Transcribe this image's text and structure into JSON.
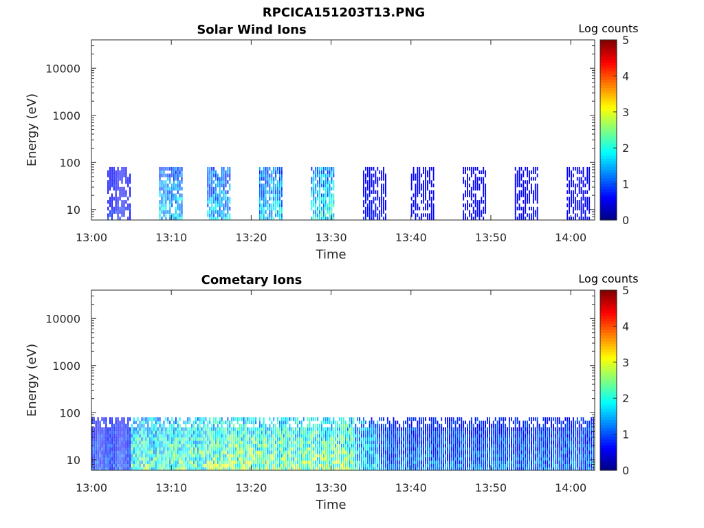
{
  "figure_title": "RPCICA151203T13.PNG",
  "chart_data": [
    {
      "type": "heatmap",
      "title": "Solar Wind Ions",
      "xlabel": "Time",
      "ylabel": "Energy (eV)",
      "yscale": "log",
      "xlim": [
        "13:00",
        "14:03"
      ],
      "ylim": [
        6,
        40000
      ],
      "x_ticks": [
        "13:00",
        "13:10",
        "13:20",
        "13:30",
        "13:40",
        "13:50",
        "14:00"
      ],
      "y_ticks": [
        "10",
        "100",
        "1000",
        "10000"
      ],
      "colorbar": {
        "label": "Log counts",
        "range": [
          0,
          5
        ],
        "ticks": [
          "0",
          "1",
          "2",
          "3",
          "4",
          "5"
        ],
        "colormap": "jet"
      },
      "data_energy_range_eV": [
        6,
        80
      ],
      "bursts": [
        {
          "start": "13:02:00",
          "end": "13:05:00",
          "peak_log_counts": 1.0
        },
        {
          "start": "13:08:30",
          "end": "13:11:30",
          "peak_log_counts": 2.2
        },
        {
          "start": "13:14:30",
          "end": "13:17:30",
          "peak_log_counts": 2.1
        },
        {
          "start": "13:21:00",
          "end": "13:24:00",
          "peak_log_counts": 2.3
        },
        {
          "start": "13:27:30",
          "end": "13:30:30",
          "peak_log_counts": 2.6
        },
        {
          "start": "13:34:00",
          "end": "13:37:00",
          "peak_log_counts": 1.0
        },
        {
          "start": "13:40:00",
          "end": "13:43:00",
          "peak_log_counts": 0.8
        },
        {
          "start": "13:46:30",
          "end": "13:49:30",
          "peak_log_counts": 0.8
        },
        {
          "start": "13:53:00",
          "end": "13:56:00",
          "peak_log_counts": 0.8
        },
        {
          "start": "13:59:30",
          "end": "14:02:30",
          "peak_log_counts": 0.8
        }
      ]
    },
    {
      "type": "heatmap",
      "title": "Cometary Ions",
      "xlabel": "Time",
      "ylabel": "Energy (eV)",
      "yscale": "log",
      "xlim": [
        "13:00",
        "14:03"
      ],
      "ylim": [
        6,
        40000
      ],
      "x_ticks": [
        "13:00",
        "13:10",
        "13:20",
        "13:30",
        "13:40",
        "13:50",
        "14:00"
      ],
      "y_ticks": [
        "10",
        "100",
        "1000",
        "10000"
      ],
      "colorbar": {
        "label": "Log counts",
        "range": [
          0,
          5
        ],
        "ticks": [
          "0",
          "1",
          "2",
          "3",
          "4",
          "5"
        ],
        "colormap": "jet"
      },
      "data_energy_range_eV": [
        6,
        80
      ],
      "intensity_profile": [
        {
          "start": "13:00:00",
          "end": "13:05:00",
          "peak_log_counts": 1.3
        },
        {
          "start": "13:05:00",
          "end": "13:10:00",
          "peak_log_counts": 3.0
        },
        {
          "start": "13:10:00",
          "end": "13:15:00",
          "peak_log_counts": 3.3
        },
        {
          "start": "13:15:00",
          "end": "13:33:00",
          "peak_log_counts": 3.5
        },
        {
          "start": "13:33:00",
          "end": "13:36:00",
          "peak_log_counts": 2.4
        },
        {
          "start": "13:36:00",
          "end": "14:03:00",
          "peak_log_counts": 1.6
        }
      ]
    }
  ]
}
